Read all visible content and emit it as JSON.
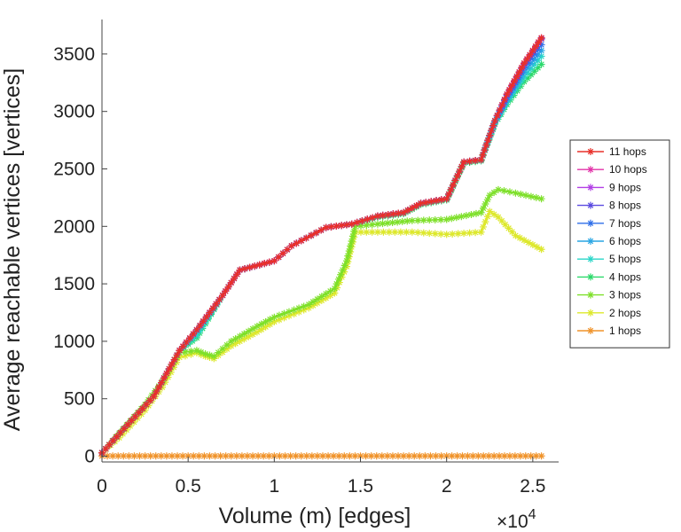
{
  "chart_data": {
    "type": "line",
    "title": "",
    "xlabel": "Volume (m) [edges]",
    "ylabel": "Average reachable vertices [vertices]",
    "x_multiplier_label": "×10",
    "x_multiplier_exponent": "4",
    "xlim": [
      0,
      2.65
    ],
    "ylim": [
      -50,
      3800
    ],
    "xticks": [
      0,
      0.5,
      1,
      1.5,
      2,
      2.5
    ],
    "xtick_labels": [
      "0",
      "0.5",
      "1",
      "1.5",
      "2",
      "2.5"
    ],
    "yticks": [
      0,
      500,
      1000,
      1500,
      2000,
      2500,
      3000,
      3500
    ],
    "ytick_labels": [
      "0",
      "500",
      "1000",
      "1500",
      "2000",
      "2500",
      "3000",
      "3500"
    ],
    "grid": false,
    "legend_position": "right",
    "series": [
      {
        "name": "11 hops",
        "color": "#e8302a",
        "x": [
          0,
          0.3,
          0.45,
          0.55,
          0.7,
          0.8,
          1.0,
          1.1,
          1.3,
          1.45,
          1.6,
          1.75,
          1.85,
          2.0,
          2.1,
          2.2,
          2.28,
          2.35,
          2.45,
          2.55
        ],
        "y": [
          30,
          520,
          920,
          1100,
          1400,
          1620,
          1700,
          1830,
          1990,
          2020,
          2090,
          2120,
          2200,
          2240,
          2560,
          2580,
          2920,
          3150,
          3420,
          3640
        ]
      },
      {
        "name": "10 hops",
        "color": "#e233a8",
        "x": [
          0,
          0.3,
          0.45,
          0.55,
          0.7,
          0.8,
          1.0,
          1.1,
          1.3,
          1.45,
          1.6,
          1.75,
          1.85,
          2.0,
          2.1,
          2.2,
          2.28,
          2.35,
          2.45,
          2.55
        ],
        "y": [
          30,
          520,
          920,
          1100,
          1400,
          1620,
          1700,
          1830,
          1990,
          2020,
          2090,
          2120,
          2200,
          2240,
          2560,
          2580,
          2920,
          3150,
          3420,
          3640
        ]
      },
      {
        "name": "9 hops",
        "color": "#b23fe6",
        "x": [
          0,
          0.3,
          0.45,
          0.55,
          0.7,
          0.8,
          1.0,
          1.1,
          1.3,
          1.45,
          1.6,
          1.75,
          1.85,
          2.0,
          2.1,
          2.2,
          2.28,
          2.35,
          2.45,
          2.55
        ],
        "y": [
          30,
          520,
          920,
          1100,
          1400,
          1620,
          1700,
          1830,
          1990,
          2020,
          2090,
          2120,
          2200,
          2240,
          2560,
          2580,
          2920,
          3150,
          3420,
          3640
        ]
      },
      {
        "name": "8 hops",
        "color": "#5a4ae0",
        "x": [
          0,
          0.3,
          0.45,
          0.55,
          0.7,
          0.8,
          1.0,
          1.1,
          1.3,
          1.45,
          1.6,
          1.75,
          1.85,
          2.0,
          2.1,
          2.2,
          2.28,
          2.35,
          2.45,
          2.55
        ],
        "y": [
          30,
          520,
          920,
          1100,
          1400,
          1620,
          1700,
          1830,
          1990,
          2020,
          2090,
          2120,
          2200,
          2240,
          2560,
          2580,
          2920,
          3140,
          3410,
          3630
        ]
      },
      {
        "name": "7 hops",
        "color": "#2f6fe8",
        "x": [
          0,
          0.3,
          0.45,
          0.55,
          0.7,
          0.8,
          1.0,
          1.1,
          1.3,
          1.45,
          1.6,
          1.75,
          1.85,
          2.0,
          2.1,
          2.2,
          2.28,
          2.35,
          2.45,
          2.55
        ],
        "y": [
          30,
          520,
          920,
          1100,
          1400,
          1620,
          1700,
          1830,
          1990,
          2020,
          2090,
          2120,
          2200,
          2240,
          2560,
          2580,
          2920,
          3120,
          3380,
          3580
        ]
      },
      {
        "name": "6 hops",
        "color": "#2aa6e4",
        "x": [
          0,
          0.3,
          0.45,
          0.55,
          0.7,
          0.8,
          1.0,
          1.1,
          1.3,
          1.45,
          1.6,
          1.75,
          1.85,
          2.0,
          2.1,
          2.2,
          2.28,
          2.35,
          2.45,
          2.55
        ],
        "y": [
          30,
          520,
          920,
          1090,
          1400,
          1620,
          1700,
          1830,
          1990,
          2020,
          2090,
          2120,
          2200,
          2240,
          2560,
          2580,
          2910,
          3100,
          3340,
          3530
        ]
      },
      {
        "name": "5 hops",
        "color": "#2ad6c8",
        "x": [
          0,
          0.3,
          0.45,
          0.55,
          0.7,
          0.8,
          1.0,
          1.1,
          1.3,
          1.45,
          1.6,
          1.75,
          1.85,
          2.0,
          2.1,
          2.2,
          2.28,
          2.35,
          2.45,
          2.55
        ],
        "y": [
          30,
          520,
          920,
          1050,
          1400,
          1620,
          1700,
          1830,
          1990,
          2020,
          2090,
          2120,
          2200,
          2240,
          2560,
          2580,
          2900,
          3080,
          3300,
          3480
        ]
      },
      {
        "name": "4 hops",
        "color": "#2bd96a",
        "x": [
          0,
          0.3,
          0.45,
          0.55,
          0.7,
          0.8,
          1.0,
          1.1,
          1.3,
          1.45,
          1.6,
          1.75,
          1.85,
          2.0,
          2.1,
          2.2,
          2.28,
          2.35,
          2.45,
          2.55
        ],
        "y": [
          30,
          520,
          920,
          1030,
          1400,
          1620,
          1700,
          1830,
          1990,
          2020,
          2080,
          2110,
          2190,
          2230,
          2550,
          2570,
          2890,
          3060,
          3260,
          3410
        ]
      },
      {
        "name": "3 hops",
        "color": "#7ee02a",
        "x": [
          0,
          0.1,
          0.25,
          0.35,
          0.45,
          0.55,
          0.6,
          0.65,
          0.75,
          0.9,
          1.0,
          1.2,
          1.35,
          1.42,
          1.47,
          1.6,
          1.8,
          2.0,
          2.2,
          2.25,
          2.3,
          2.4,
          2.55
        ],
        "y": [
          30,
          200,
          450,
          650,
          900,
          920,
          890,
          870,
          1000,
          1130,
          1210,
          1320,
          1460,
          1700,
          2000,
          2020,
          2050,
          2060,
          2120,
          2270,
          2320,
          2290,
          2240
        ]
      },
      {
        "name": "2 hops",
        "color": "#dde82c",
        "x": [
          0,
          0.1,
          0.25,
          0.35,
          0.45,
          0.55,
          0.6,
          0.65,
          0.75,
          0.9,
          1.0,
          1.2,
          1.35,
          1.42,
          1.47,
          1.6,
          1.8,
          2.0,
          2.2,
          2.25,
          2.3,
          2.4,
          2.55
        ],
        "y": [
          30,
          160,
          400,
          600,
          860,
          900,
          870,
          850,
          960,
          1080,
          1170,
          1290,
          1420,
          1650,
          1950,
          1950,
          1950,
          1930,
          1950,
          2130,
          2080,
          1920,
          1800
        ]
      },
      {
        "name": "1 hops",
        "color": "#f0932a",
        "x": [
          0,
          0.5,
          1.0,
          1.5,
          2.0,
          2.55
        ],
        "y": [
          2,
          2,
          2,
          2,
          2,
          2
        ]
      }
    ]
  }
}
